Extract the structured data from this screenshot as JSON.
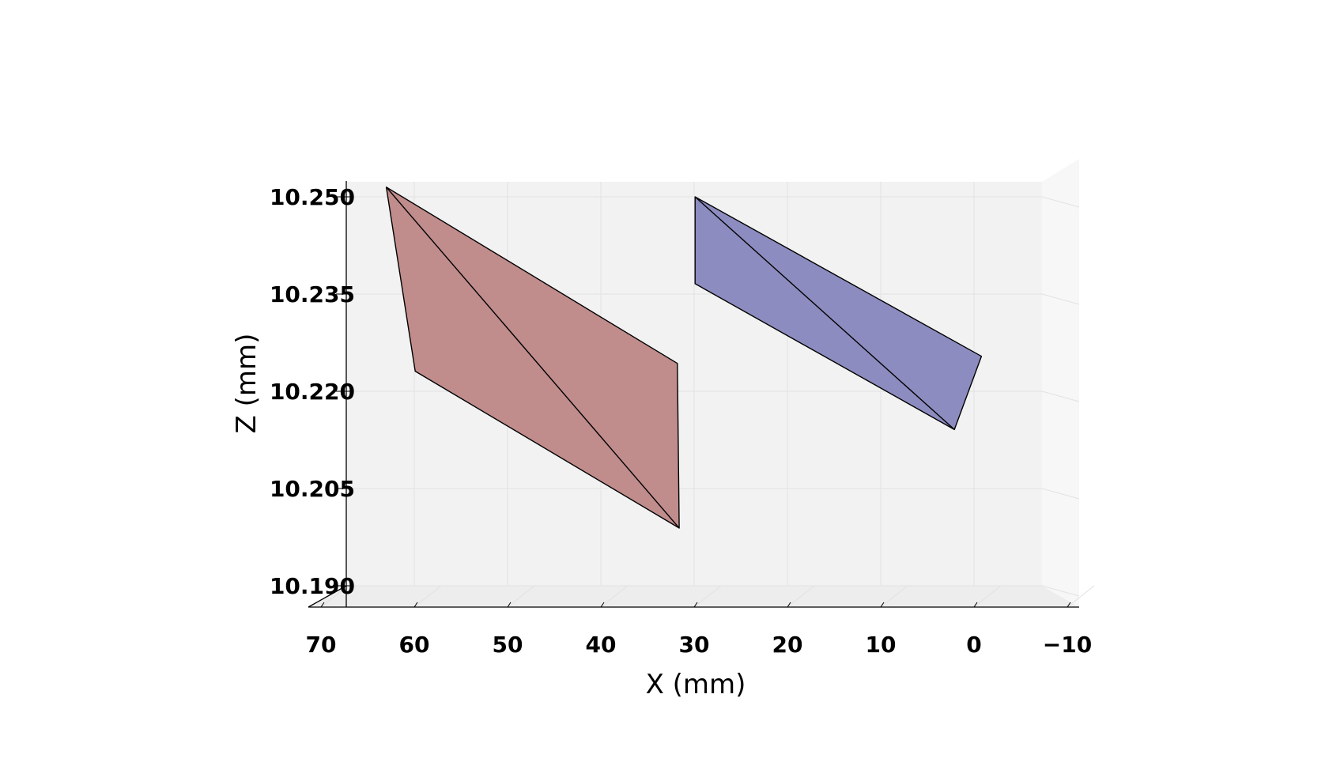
{
  "chart_data": {
    "type": "3d-surface",
    "view": "orthographic, looking along +Y, X axis reversed",
    "xlabel": "X (mm)",
    "zlabel": "Z (mm)",
    "xlim": [
      70.5,
      -11.5
    ],
    "zlim": [
      10.1885,
      10.2515
    ],
    "x_ticks": [
      70,
      60,
      50,
      40,
      30,
      20,
      10,
      0,
      -10
    ],
    "x_tick_labels": [
      "70",
      "60",
      "50",
      "40",
      "30",
      "20",
      "10",
      "0",
      "−10"
    ],
    "z_ticks": [
      10.19,
      10.205,
      10.22,
      10.235,
      10.25
    ],
    "z_tick_labels": [
      "10.190",
      "10.205",
      "10.220",
      "10.235",
      "10.250"
    ],
    "grid": true,
    "legend": "none",
    "series": [
      {
        "color": "#c08c8c",
        "vertices": [
          {
            "x": 63.0,
            "z": 10.2515
          },
          {
            "x": 59.9,
            "z": 10.2231
          },
          {
            "x": 31.6,
            "z": 10.1989
          },
          {
            "x": 31.8,
            "z": 10.2243
          }
        ],
        "diagonal": [
          0,
          2
        ]
      },
      {
        "color": "#8c8cc0",
        "vertices": [
          {
            "x": 29.9,
            "z": 10.25
          },
          {
            "x": 29.9,
            "z": 10.2366
          },
          {
            "x": 2.1,
            "z": 10.2141
          },
          {
            "x": -0.8,
            "z": 10.2254
          }
        ],
        "diagonal": [
          0,
          2
        ]
      }
    ]
  }
}
